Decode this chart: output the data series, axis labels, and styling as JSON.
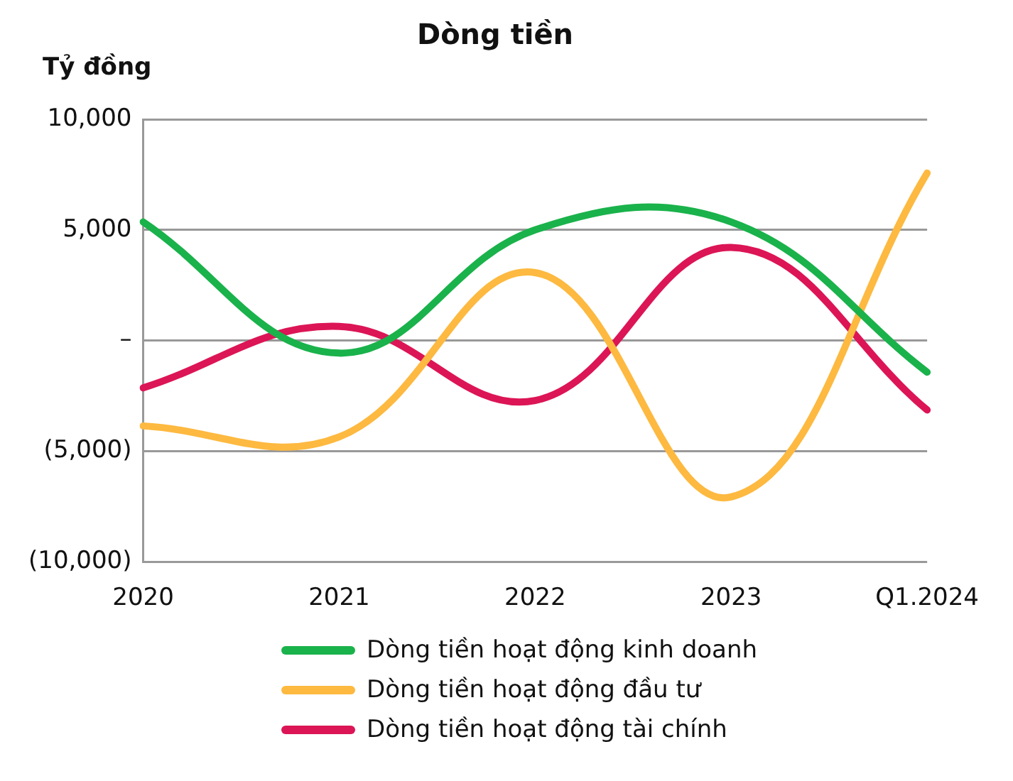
{
  "chart_data": {
    "type": "line",
    "title": "Dòng tiền",
    "ylabel": "Tỷ đồng",
    "categories": [
      "2020",
      "2021",
      "2022",
      "2023",
      "Q1.2024"
    ],
    "series": [
      {
        "name": "Dòng tiền hoạt động kinh doanh",
        "color": "#1ab24b",
        "values": [
          5360,
          -570,
          5000,
          5360,
          -1430
        ]
      },
      {
        "name": "Dòng tiền hoạt động đầu tư",
        "color": "#fdb940",
        "values": [
          -3860,
          -4360,
          3070,
          -7070,
          7570
        ]
      },
      {
        "name": "Dòng tiền hoạt động tài chính",
        "color": "#dc1556",
        "values": [
          -2140,
          640,
          -2710,
          4210,
          -3140
        ]
      }
    ],
    "ylim": [
      -10000,
      10000
    ],
    "yticks": [
      {
        "value": -10000,
        "label": "(10,000)"
      },
      {
        "value": -5000,
        "label": "(5,000)"
      },
      {
        "value": 0,
        "label": "–"
      },
      {
        "value": 5000,
        "label": "5,000"
      },
      {
        "value": 10000,
        "label": "10,000"
      }
    ],
    "grid": "y",
    "legend": "bottom",
    "marker": "none",
    "line_style": "solid"
  }
}
